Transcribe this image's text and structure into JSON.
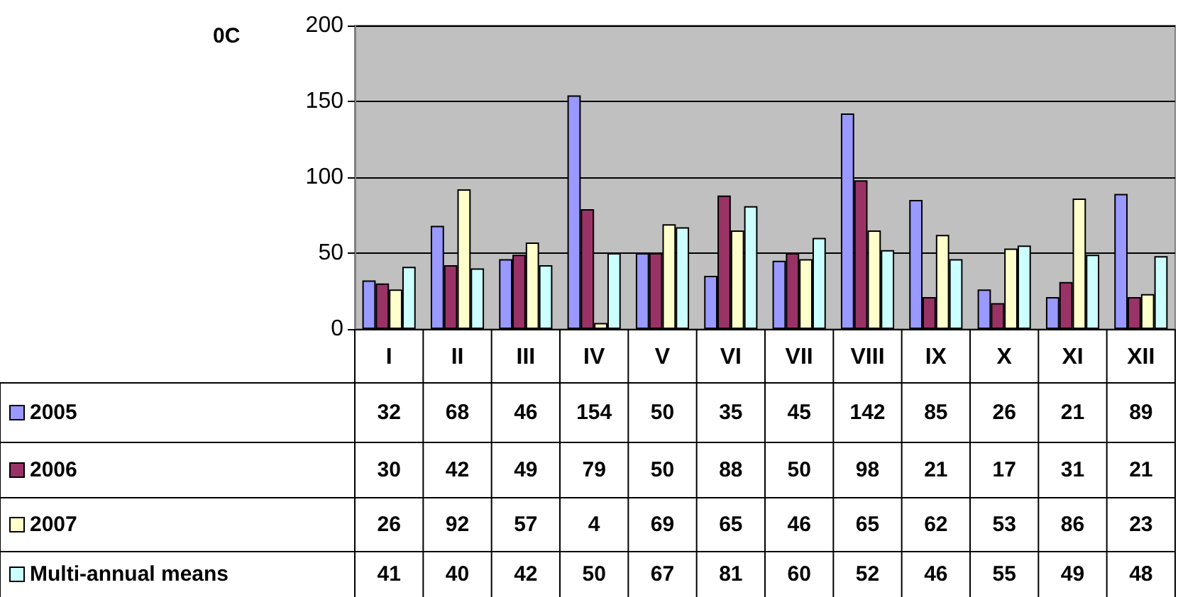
{
  "chart_data": {
    "type": "bar",
    "ylabel": "0C",
    "categories": [
      "I",
      "II",
      "III",
      "IV",
      "V",
      "VI",
      "VII",
      "VIII",
      "IX",
      "X",
      "XI",
      "XII"
    ],
    "series": [
      {
        "name": "2005",
        "color": "#9999ff",
        "values": [
          32,
          68,
          46,
          154,
          50,
          35,
          45,
          142,
          85,
          26,
          21,
          89
        ]
      },
      {
        "name": "2006",
        "color": "#993366",
        "values": [
          30,
          42,
          49,
          79,
          50,
          88,
          50,
          98,
          21,
          17,
          31,
          21
        ]
      },
      {
        "name": "2007",
        "color": "#ffffcc",
        "values": [
          26,
          92,
          57,
          4,
          69,
          65,
          46,
          65,
          62,
          53,
          86,
          23
        ]
      },
      {
        "name": "Multi-annual means",
        "color": "#ccffff",
        "values": [
          41,
          40,
          42,
          50,
          67,
          81,
          60,
          52,
          46,
          55,
          49,
          48
        ]
      }
    ],
    "ylim": [
      0,
      200
    ],
    "yticks": [
      0,
      50,
      100,
      150,
      200
    ],
    "grid": "y",
    "legend": "bottom",
    "data_labels": true
  }
}
